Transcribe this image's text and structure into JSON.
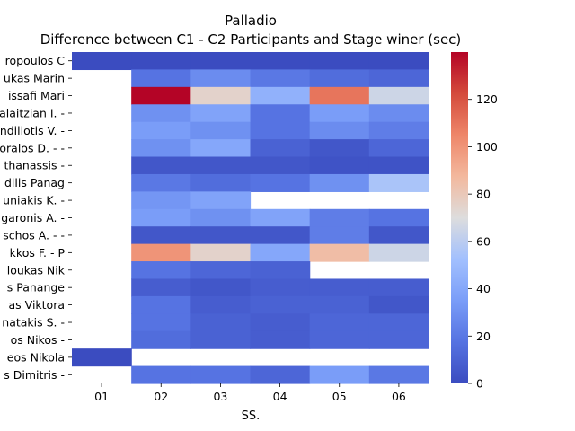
{
  "chart_data": {
    "type": "heatmap",
    "title": "Palladio",
    "subtitle": "Difference between C1 - C2 Participants and Stage winer (sec)",
    "xlabel": "SS.",
    "ylabel": "",
    "x_categories": [
      "01",
      "02",
      "03",
      "04",
      "05",
      "06"
    ],
    "y_categories": [
      "ropoulos C",
      "ukas Marin",
      "issafi Mari",
      "alaitzian I.  -",
      "ndiliotis V.  -",
      "oralos D.  - -",
      "thanassis  -",
      "dilis Panag",
      "uniakis K.   -",
      "garonis A.  -",
      "schos A.  -  -",
      "kkos F.  - P",
      "loukas Nik",
      "s Panange",
      "as Viktora",
      "natakis S.  -",
      "os Nikos  -",
      "eos Nikola",
      "s Dimitris  -"
    ],
    "values": [
      [
        0,
        0,
        0,
        0,
        0,
        0
      ],
      [
        null,
        18,
        28,
        20,
        15,
        12
      ],
      [
        null,
        140,
        75,
        45,
        110,
        65
      ],
      [
        null,
        30,
        38,
        18,
        35,
        28
      ],
      [
        null,
        35,
        30,
        18,
        28,
        22
      ],
      [
        null,
        30,
        40,
        10,
        5,
        12
      ],
      [
        null,
        5,
        5,
        5,
        3,
        3
      ],
      [
        null,
        20,
        15,
        18,
        30,
        55
      ],
      [
        null,
        32,
        38,
        null,
        null,
        null
      ],
      [
        null,
        35,
        30,
        38,
        22,
        18
      ],
      [
        null,
        5,
        5,
        5,
        22,
        5
      ],
      [
        null,
        100,
        75,
        40,
        85,
        65
      ],
      [
        null,
        18,
        12,
        10,
        null,
        null
      ],
      [
        null,
        8,
        5,
        8,
        8,
        8
      ],
      [
        null,
        18,
        8,
        10,
        10,
        5
      ],
      [
        null,
        18,
        10,
        8,
        12,
        12
      ],
      [
        null,
        15,
        10,
        8,
        12,
        12
      ],
      [
        0,
        null,
        null,
        null,
        null,
        null
      ],
      [
        null,
        18,
        18,
        12,
        35,
        20
      ]
    ],
    "colorbar": {
      "min": 0,
      "max": 140,
      "ticks": [
        0,
        20,
        40,
        60,
        80,
        100,
        120
      ]
    },
    "colormap": "coolwarm"
  }
}
